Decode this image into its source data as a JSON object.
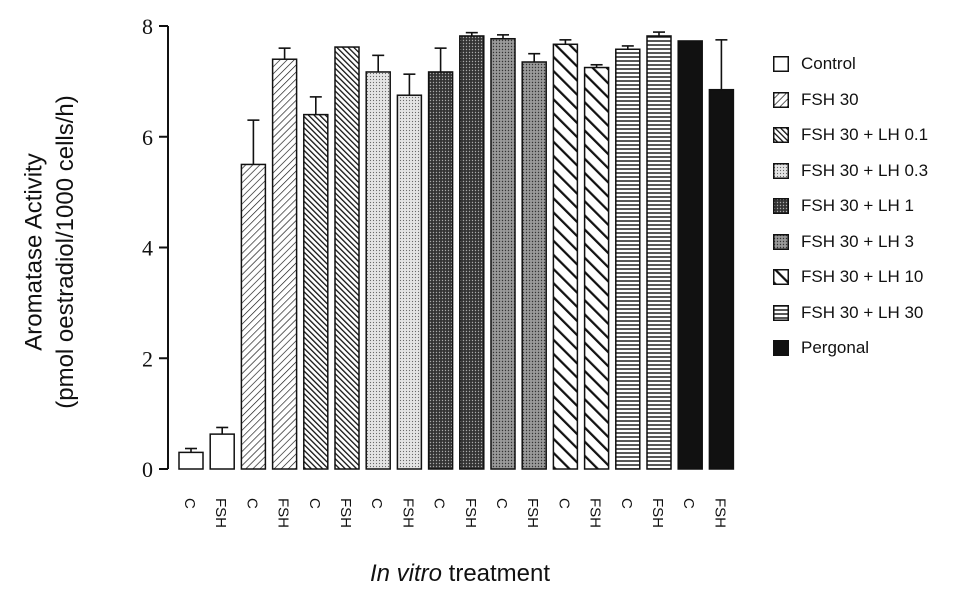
{
  "chart_data": {
    "type": "bar",
    "ylabel_line1": "Aromatase Activity",
    "ylabel_line2": "(pmol oestradiol/1000 cells/h)",
    "xlabel_italic": "In vitro",
    "xlabel_rest": " treatment",
    "ylim": [
      0,
      8
    ],
    "yticks": [
      "0",
      "2",
      "4",
      "6",
      "8"
    ],
    "grid": false,
    "legend_position": "right",
    "categories": [
      "C",
      "FSH",
      "C",
      "FSH",
      "C",
      "FSH",
      "C",
      "FSH",
      "C",
      "FSH",
      "C",
      "FSH",
      "C",
      "FSH",
      "C",
      "FSH",
      "C",
      "FSH"
    ],
    "bars": [
      {
        "series": 0,
        "value": 0.3,
        "error": 0.07
      },
      {
        "series": 0,
        "value": 0.63,
        "error": 0.12
      },
      {
        "series": 1,
        "value": 5.5,
        "error": 0.8
      },
      {
        "series": 1,
        "value": 7.4,
        "error": 0.2
      },
      {
        "series": 2,
        "value": 6.4,
        "error": 0.32
      },
      {
        "series": 2,
        "value": 7.62,
        "error": 0
      },
      {
        "series": 3,
        "value": 7.17,
        "error": 0.3
      },
      {
        "series": 3,
        "value": 6.75,
        "error": 0.38
      },
      {
        "series": 4,
        "value": 7.17,
        "error": 0.43
      },
      {
        "series": 4,
        "value": 7.82,
        "error": 0.06
      },
      {
        "series": 5,
        "value": 7.77,
        "error": 0.07
      },
      {
        "series": 5,
        "value": 7.35,
        "error": 0.15
      },
      {
        "series": 6,
        "value": 7.67,
        "error": 0.08
      },
      {
        "series": 6,
        "value": 7.25,
        "error": 0.05
      },
      {
        "series": 7,
        "value": 7.58,
        "error": 0.06
      },
      {
        "series": 7,
        "value": 7.82,
        "error": 0.07
      },
      {
        "series": 8,
        "value": 7.73,
        "error": 0
      },
      {
        "series": 8,
        "value": 6.85,
        "error": 0.9
      }
    ],
    "series": [
      {
        "name": "Control",
        "pattern": "white"
      },
      {
        "name": "FSH 30",
        "pattern": "diag-thin"
      },
      {
        "name": "FSH 30 + LH 0.1",
        "pattern": "diag-dense"
      },
      {
        "name": "FSH 30 + LH 0.3",
        "pattern": "dots-light"
      },
      {
        "name": "FSH 30 + LH 1",
        "pattern": "dots-dark"
      },
      {
        "name": "FSH 30 + LH 3",
        "pattern": "dots-medium"
      },
      {
        "name": "FSH 30 + LH 10",
        "pattern": "diag-wide"
      },
      {
        "name": "FSH 30 + LH 30",
        "pattern": "horizontal"
      },
      {
        "name": "Pergonal",
        "pattern": "black"
      }
    ]
  }
}
